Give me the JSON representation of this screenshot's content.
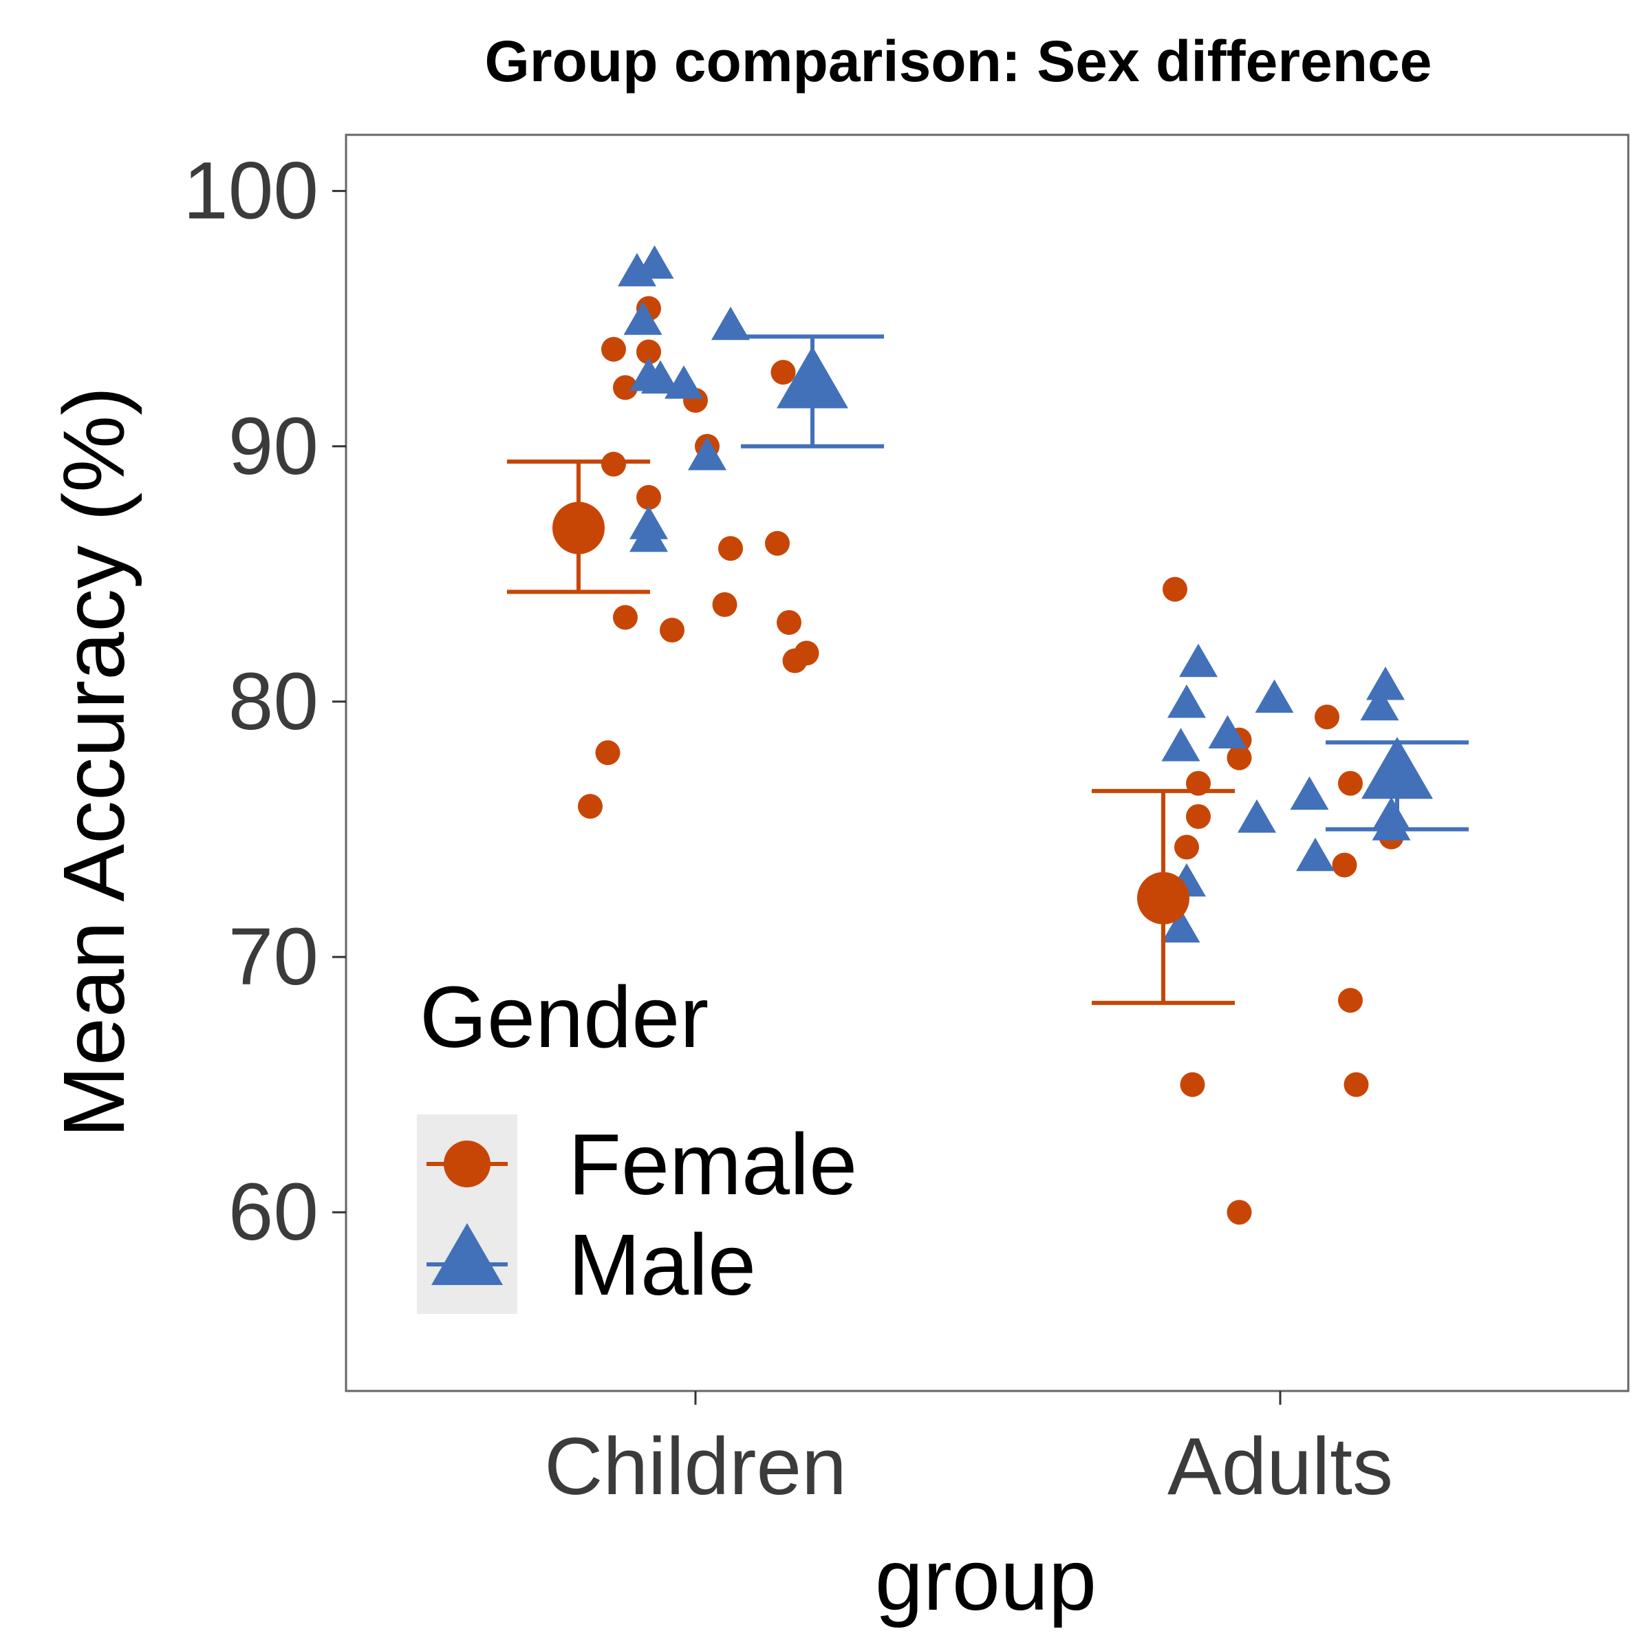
{
  "chart_data": {
    "type": "scatter",
    "title": "Group comparison: Sex difference",
    "xlabel": "group",
    "ylabel": "Mean Accuracy (%)",
    "categories": [
      "Children",
      "Adults"
    ],
    "ylim": [
      53,
      102.2
    ],
    "yticks": [
      60,
      70,
      80,
      90,
      100
    ],
    "grid": false,
    "legend": {
      "title": "Gender",
      "position": "bottom-left",
      "entries": [
        "Female",
        "Male"
      ]
    },
    "colors": {
      "Female": "#c84605",
      "Male": "#4271b9"
    },
    "series": [
      {
        "name": "Female",
        "marker": "circle",
        "summary": [
          {
            "group": "Children",
            "mean": 86.8,
            "lower": 84.3,
            "upper": 89.4
          },
          {
            "group": "Adults",
            "mean": 72.3,
            "lower": 68.2,
            "upper": 76.5
          }
        ],
        "points": [
          {
            "group": "Children",
            "offset": -0.14,
            "y": 93.8
          },
          {
            "group": "Children",
            "offset": -0.12,
            "y": 92.3
          },
          {
            "group": "Children",
            "offset": -0.08,
            "y": 95.4
          },
          {
            "group": "Children",
            "offset": -0.08,
            "y": 93.7
          },
          {
            "group": "Children",
            "offset": 0.0,
            "y": 91.8
          },
          {
            "group": "Children",
            "offset": 0.02,
            "y": 90.0
          },
          {
            "group": "Children",
            "offset": -0.14,
            "y": 89.3
          },
          {
            "group": "Children",
            "offset": -0.08,
            "y": 88.0
          },
          {
            "group": "Children",
            "offset": 0.06,
            "y": 86.0
          },
          {
            "group": "Children",
            "offset": 0.14,
            "y": 86.2
          },
          {
            "group": "Children",
            "offset": 0.05,
            "y": 83.8
          },
          {
            "group": "Children",
            "offset": -0.12,
            "y": 83.3
          },
          {
            "group": "Children",
            "offset": -0.04,
            "y": 82.8
          },
          {
            "group": "Children",
            "offset": 0.16,
            "y": 83.1
          },
          {
            "group": "Children",
            "offset": 0.19,
            "y": 81.9
          },
          {
            "group": "Children",
            "offset": 0.17,
            "y": 81.6
          },
          {
            "group": "Children",
            "offset": -0.15,
            "y": 78.0
          },
          {
            "group": "Children",
            "offset": -0.18,
            "y": 75.9
          },
          {
            "group": "Children",
            "offset": 0.15,
            "y": 92.9
          },
          {
            "group": "Adults",
            "offset": -0.18,
            "y": 84.4
          },
          {
            "group": "Adults",
            "offset": -0.07,
            "y": 78.5
          },
          {
            "group": "Adults",
            "offset": -0.07,
            "y": 77.8
          },
          {
            "group": "Adults",
            "offset": -0.14,
            "y": 76.8
          },
          {
            "group": "Adults",
            "offset": -0.14,
            "y": 75.5
          },
          {
            "group": "Adults",
            "offset": -0.16,
            "y": 74.3
          },
          {
            "group": "Adults",
            "offset": 0.08,
            "y": 79.4
          },
          {
            "group": "Adults",
            "offset": 0.12,
            "y": 76.8
          },
          {
            "group": "Adults",
            "offset": 0.11,
            "y": 73.6
          },
          {
            "group": "Adults",
            "offset": 0.19,
            "y": 74.7
          },
          {
            "group": "Adults",
            "offset": 0.12,
            "y": 68.3
          },
          {
            "group": "Adults",
            "offset": -0.15,
            "y": 65.0
          },
          {
            "group": "Adults",
            "offset": 0.13,
            "y": 65.0
          },
          {
            "group": "Adults",
            "offset": -0.07,
            "y": 60.0
          }
        ]
      },
      {
        "name": "Male",
        "marker": "triangle",
        "summary": [
          {
            "group": "Children",
            "mean": 92.3,
            "lower": 90.0,
            "upper": 94.3
          },
          {
            "group": "Adults",
            "offset": 0.2,
            "mean": 77.0,
            "lower": 75.0,
            "upper": 78.4
          }
        ],
        "points": [
          {
            "group": "Children",
            "offset": -0.1,
            "y": 96.7
          },
          {
            "group": "Children",
            "offset": -0.07,
            "y": 97.0
          },
          {
            "group": "Children",
            "offset": -0.09,
            "y": 94.8
          },
          {
            "group": "Children",
            "offset": 0.06,
            "y": 94.6
          },
          {
            "group": "Children",
            "offset": -0.08,
            "y": 92.6
          },
          {
            "group": "Children",
            "offset": -0.06,
            "y": 92.5
          },
          {
            "group": "Children",
            "offset": -0.02,
            "y": 92.3
          },
          {
            "group": "Children",
            "offset": 0.02,
            "y": 89.5
          },
          {
            "group": "Children",
            "offset": -0.08,
            "y": 86.8
          },
          {
            "group": "Children",
            "offset": -0.08,
            "y": 86.3
          },
          {
            "group": "Adults",
            "offset": -0.14,
            "y": 81.4
          },
          {
            "group": "Adults",
            "offset": -0.16,
            "y": 79.8
          },
          {
            "group": "Adults",
            "offset": -0.01,
            "y": 80.0
          },
          {
            "group": "Adults",
            "offset": -0.09,
            "y": 78.6
          },
          {
            "group": "Adults",
            "offset": -0.17,
            "y": 78.1
          },
          {
            "group": "Adults",
            "offset": -0.04,
            "y": 75.3
          },
          {
            "group": "Adults",
            "offset": 0.05,
            "y": 76.2
          },
          {
            "group": "Adults",
            "offset": 0.06,
            "y": 73.8
          },
          {
            "group": "Adults",
            "offset": -0.16,
            "y": 72.8
          },
          {
            "group": "Adults",
            "offset": -0.17,
            "y": 71.0
          },
          {
            "group": "Adults",
            "offset": 0.18,
            "y": 80.5
          },
          {
            "group": "Adults",
            "offset": 0.17,
            "y": 79.7
          },
          {
            "group": "Adults",
            "offset": 0.19,
            "y": 75.4
          },
          {
            "group": "Adults",
            "offset": 0.19,
            "y": 75.0
          }
        ]
      }
    ]
  }
}
